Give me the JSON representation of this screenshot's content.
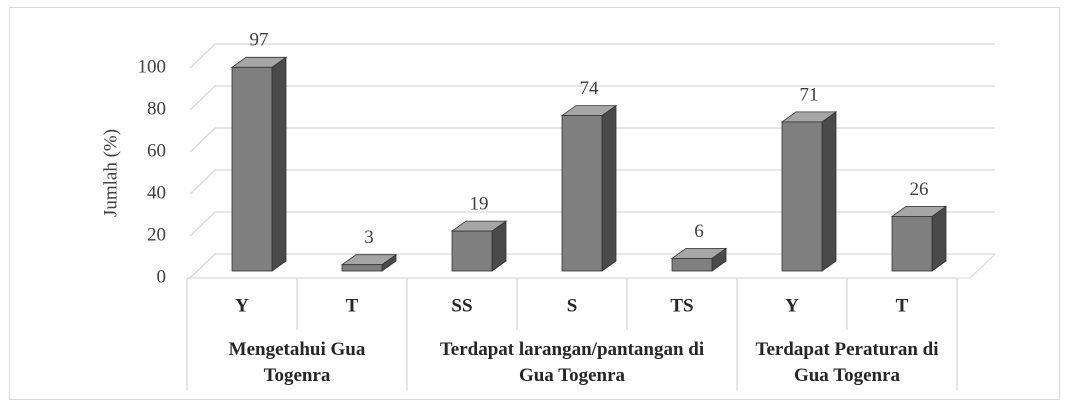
{
  "chart_data": {
    "type": "bar3d",
    "y_label": "Jumlah (%)",
    "groups": [
      {
        "name": "Mengetahui Gua Togenra",
        "categories": [
          "Y",
          "T"
        ],
        "values": [
          97,
          3
        ]
      },
      {
        "name": "Terdapat larangan/pantangan di Gua Togenra",
        "categories": [
          "SS",
          "S",
          "TS"
        ],
        "values": [
          19,
          74,
          6
        ]
      },
      {
        "name": "Terdapat Peraturan di Gua Togenra",
        "categories": [
          "Y",
          "T"
        ],
        "values": [
          71,
          26
        ]
      }
    ],
    "color": "#7f7f7f",
    "ylim": [
      0,
      100
    ],
    "yticks": [
      0,
      20,
      40,
      60,
      80,
      100
    ],
    "grid": true
  }
}
